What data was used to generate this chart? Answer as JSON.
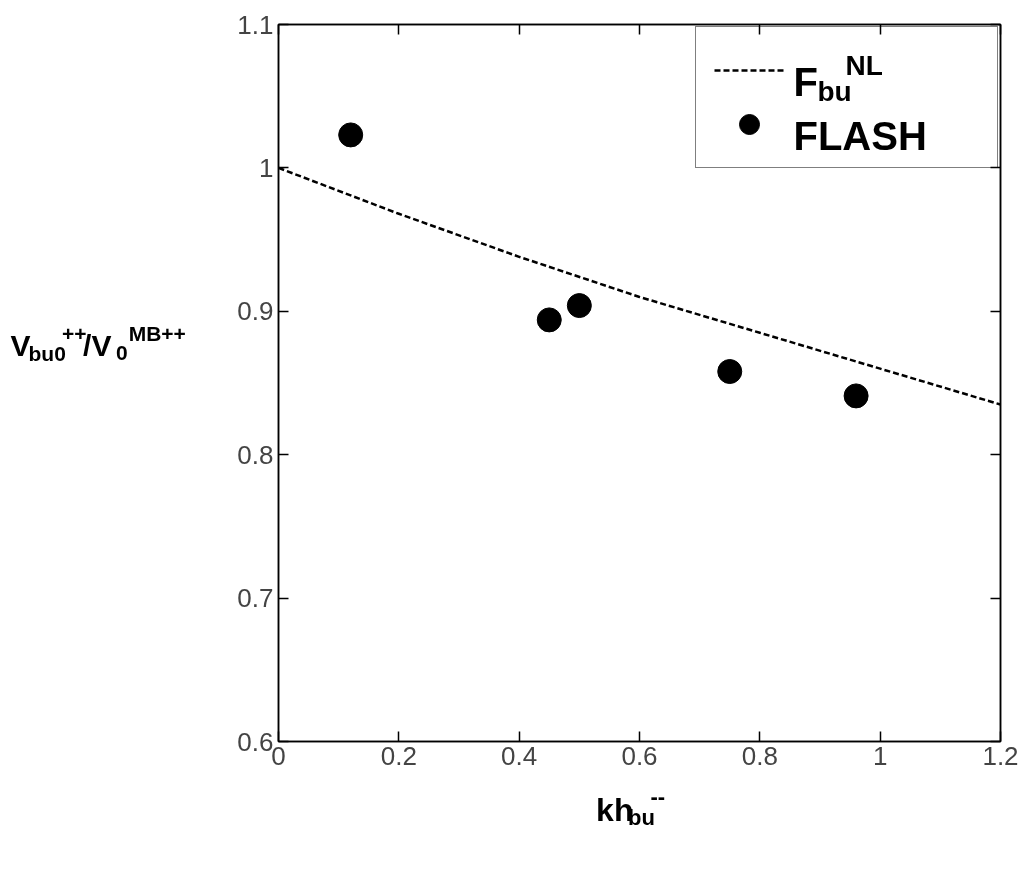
{
  "chart_data": {
    "type": "scatter",
    "xlabel": "kh$_{bu}$$^{--}$",
    "ylabel": "V$_{bu0}$$^{++}$/V$_{0}$$^{MB++}$",
    "xlim": [
      0,
      1.2
    ],
    "ylim": [
      0.6,
      1.1
    ],
    "xticks": [
      0,
      0.2,
      0.4,
      0.6,
      0.8,
      1,
      1.2
    ],
    "yticks": [
      0.6,
      0.7,
      0.8,
      0.9,
      1,
      1.1
    ],
    "legend": "top right",
    "grid": false,
    "series": [
      {
        "name": "F$_{bu}$$^{NL}$",
        "type": "line",
        "line_style": "dashed",
        "marker": "none",
        "color": "#000000",
        "x": [
          0,
          0.2,
          0.4,
          0.6,
          0.8,
          1.0,
          1.2
        ],
        "values": [
          1.0,
          0.968,
          0.938,
          0.91,
          0.885,
          0.86,
          0.835
        ]
      },
      {
        "name": "FLASH",
        "marker": "circle",
        "color": "#000000",
        "x": [
          0.12,
          0.45,
          0.5,
          0.75,
          0.96
        ],
        "values": [
          1.023,
          0.894,
          0.904,
          0.858,
          0.841
        ]
      }
    ]
  }
}
